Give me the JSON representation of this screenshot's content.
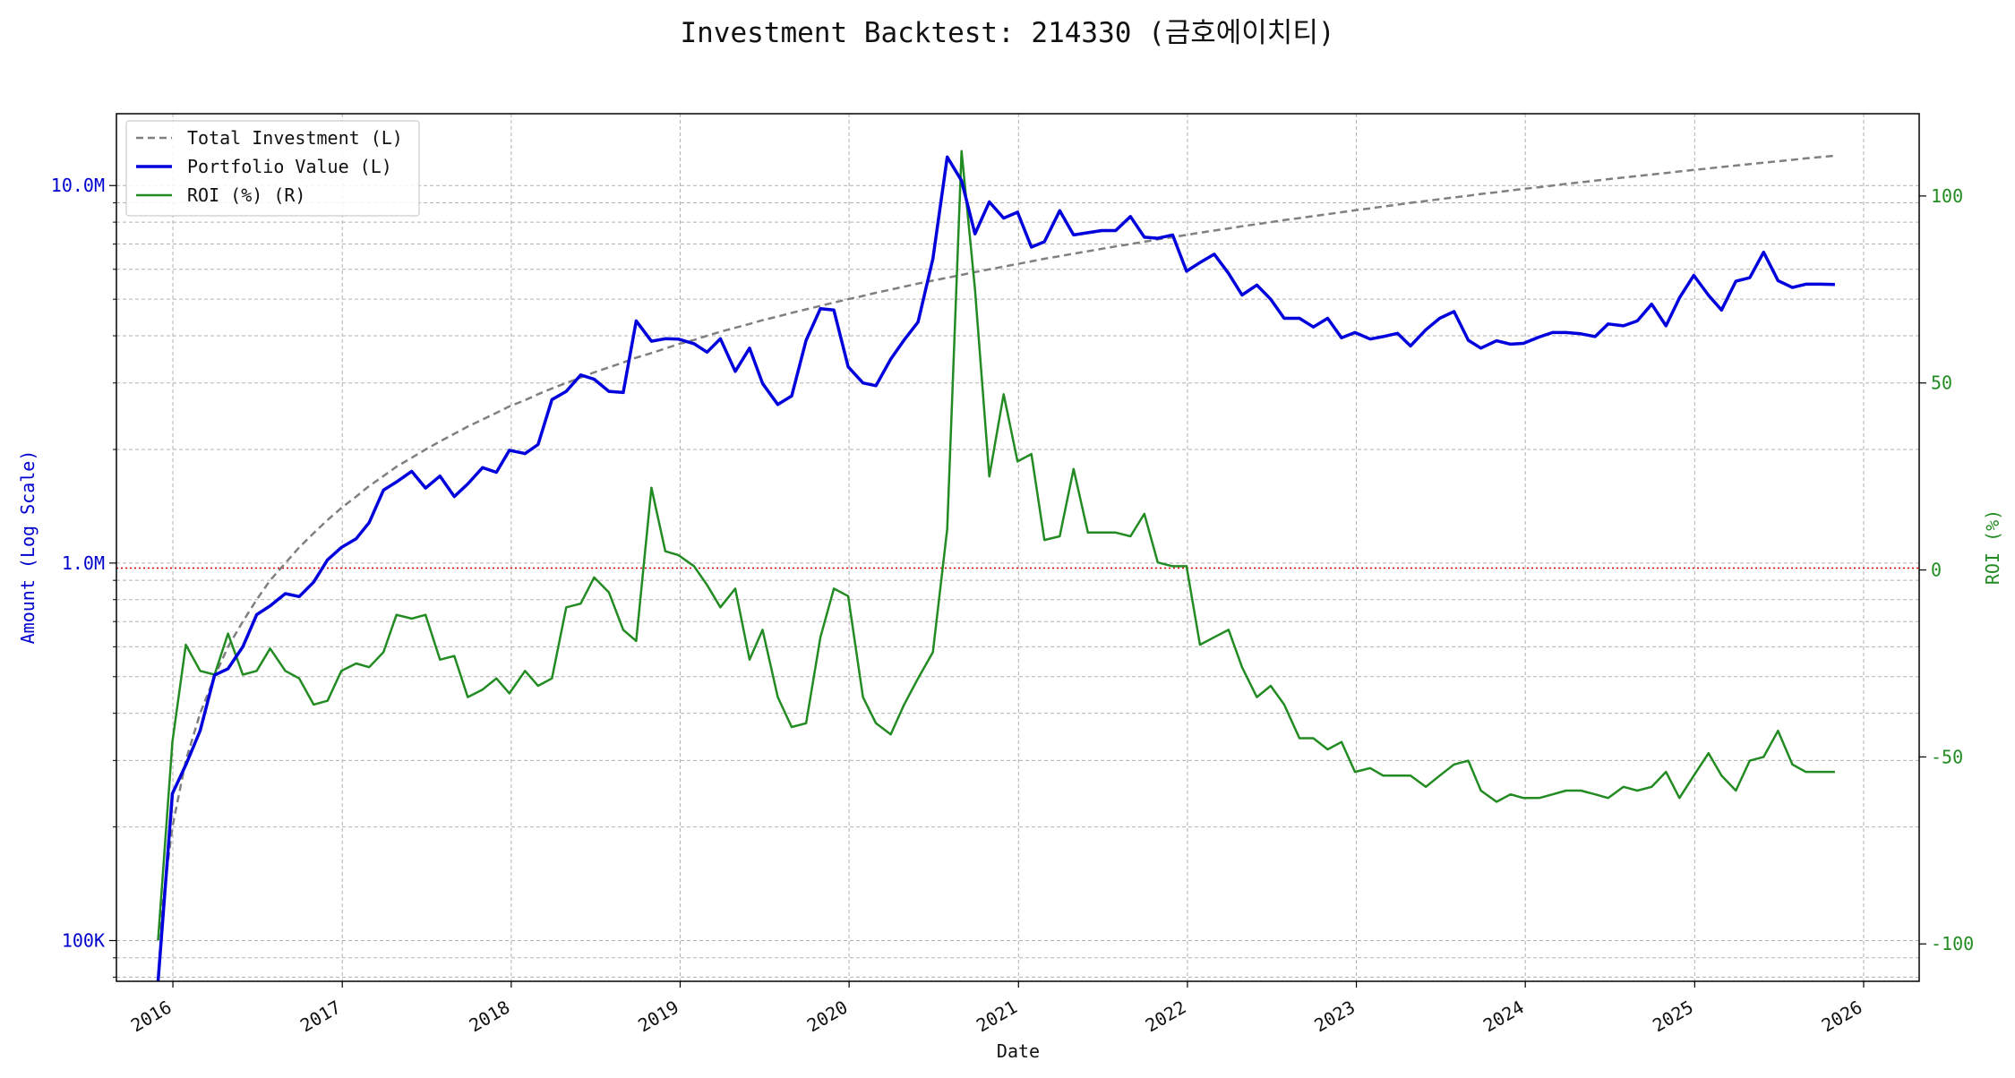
{
  "chart_data": {
    "type": "line",
    "title": "Investment Backtest: 214330 (금호에이치티)",
    "xlabel": "Date",
    "ylabel_left": "Amount (Log Scale)",
    "ylabel_right": "ROI (%)",
    "left_scale": "log",
    "grid": true,
    "legend_position": "top-left",
    "x_range": [
      "2015-09-01",
      "2026-05-01"
    ],
    "left_ylim": [
      78000,
      15500000
    ],
    "right_ylim": [
      -110,
      122
    ],
    "x_ticks": [
      {
        "date": "2016-01-01",
        "label": "2016"
      },
      {
        "date": "2017-01-01",
        "label": "2017"
      },
      {
        "date": "2018-01-01",
        "label": "2018"
      },
      {
        "date": "2019-01-01",
        "label": "2019"
      },
      {
        "date": "2020-01-01",
        "label": "2020"
      },
      {
        "date": "2021-01-01",
        "label": "2021"
      },
      {
        "date": "2022-01-01",
        "label": "2022"
      },
      {
        "date": "2023-01-01",
        "label": "2023"
      },
      {
        "date": "2024-01-01",
        "label": "2024"
      },
      {
        "date": "2025-01-01",
        "label": "2025"
      },
      {
        "date": "2026-01-01",
        "label": "2026"
      }
    ],
    "left_ticks": [
      {
        "value": 100000,
        "label": "100K"
      },
      {
        "value": 1000000,
        "label": "1.0M"
      },
      {
        "value": 10000000,
        "label": "10.0M"
      }
    ],
    "right_ticks": [
      {
        "value": -100,
        "label": "-100"
      },
      {
        "value": -50,
        "label": "-50"
      },
      {
        "value": 0,
        "label": "0"
      },
      {
        "value": 50,
        "label": "50"
      },
      {
        "value": 100,
        "label": "100"
      }
    ],
    "reference_line": {
      "axis": "left",
      "value": 970000,
      "color": "#dd0000",
      "style": "dotted"
    },
    "dates": [
      "2015-11-30",
      "2015-12-31",
      "2016-01-29",
      "2016-02-29",
      "2016-03-31",
      "2016-04-29",
      "2016-05-31",
      "2016-06-30",
      "2016-07-29",
      "2016-08-31",
      "2016-09-30",
      "2016-10-31",
      "2016-11-30",
      "2016-12-30",
      "2017-01-31",
      "2017-02-28",
      "2017-03-31",
      "2017-04-28",
      "2017-05-31",
      "2017-06-30",
      "2017-07-31",
      "2017-08-31",
      "2017-09-29",
      "2017-10-31",
      "2017-11-30",
      "2017-12-28",
      "2018-01-31",
      "2018-02-28",
      "2018-03-30",
      "2018-04-30",
      "2018-05-31",
      "2018-06-29",
      "2018-07-31",
      "2018-08-31",
      "2018-09-28",
      "2018-10-31",
      "2018-11-30",
      "2018-12-28",
      "2019-01-31",
      "2019-02-28",
      "2019-03-29",
      "2019-04-30",
      "2019-05-31",
      "2019-06-28",
      "2019-07-31",
      "2019-08-30",
      "2019-09-30",
      "2019-10-31",
      "2019-11-29",
      "2019-12-30",
      "2020-01-31",
      "2020-02-28",
      "2020-03-31",
      "2020-04-29",
      "2020-05-29",
      "2020-06-30",
      "2020-07-31",
      "2020-08-31",
      "2020-09-29",
      "2020-10-30",
      "2020-11-30",
      "2020-12-30",
      "2021-01-29",
      "2021-02-26",
      "2021-03-31",
      "2021-04-30",
      "2021-05-31",
      "2021-06-30",
      "2021-07-30",
      "2021-08-31",
      "2021-09-30",
      "2021-10-29",
      "2021-11-30",
      "2021-12-30",
      "2022-01-28",
      "2022-02-28",
      "2022-03-31",
      "2022-04-29",
      "2022-05-31",
      "2022-06-30",
      "2022-07-29",
      "2022-08-31",
      "2022-09-30",
      "2022-10-31",
      "2022-11-30",
      "2022-12-29",
      "2023-01-31",
      "2023-02-28",
      "2023-03-31",
      "2023-04-28",
      "2023-05-31",
      "2023-06-30",
      "2023-07-31",
      "2023-08-31",
      "2023-09-27",
      "2023-10-31",
      "2023-11-30",
      "2023-12-28",
      "2024-01-31",
      "2024-02-29",
      "2024-03-29",
      "2024-04-30",
      "2024-05-31",
      "2024-06-28",
      "2024-07-31",
      "2024-08-30",
      "2024-09-30",
      "2024-10-31",
      "2024-11-29",
      "2024-12-30",
      "2025-01-31",
      "2025-02-28",
      "2025-03-31",
      "2025-04-30",
      "2025-05-30",
      "2025-06-30",
      "2025-07-31",
      "2025-08-29",
      "2025-09-30",
      "2025-10-31"
    ],
    "series": [
      {
        "name": "Total Investment (L)",
        "axis": "left",
        "color": "#808080",
        "style": "dashed",
        "values": [
          100000,
          200000,
          300000,
          400000,
          500000,
          600000,
          700000,
          800000,
          900000,
          1000000,
          1100000,
          1200000,
          1300000,
          1400000,
          1500000,
          1600000,
          1700000,
          1800000,
          1900000,
          2000000,
          2100000,
          2200000,
          2300000,
          2400000,
          2500000,
          2600000,
          2700000,
          2800000,
          2900000,
          3000000,
          3100000,
          3200000,
          3300000,
          3400000,
          3500000,
          3600000,
          3700000,
          3800000,
          3900000,
          4000000,
          4100000,
          4200000,
          4300000,
          4400000,
          4500000,
          4600000,
          4700000,
          4800000,
          4900000,
          5000000,
          5100000,
          5200000,
          5300000,
          5400000,
          5500000,
          5600000,
          5700000,
          5800000,
          5900000,
          6000000,
          6100000,
          6200000,
          6300000,
          6400000,
          6500000,
          6600000,
          6700000,
          6800000,
          6900000,
          7000000,
          7100000,
          7200000,
          7300000,
          7400000,
          7500000,
          7600000,
          7700000,
          7800000,
          7900000,
          8000000,
          8100000,
          8200000,
          8300000,
          8400000,
          8500000,
          8600000,
          8700000,
          8800000,
          8900000,
          9000000,
          9100000,
          9200000,
          9300000,
          9400000,
          9500000,
          9600000,
          9700000,
          9800000,
          9900000,
          10000000,
          10100000,
          10200000,
          10300000,
          10400000,
          10500000,
          10600000,
          10700000,
          10800000,
          10900000,
          11000000,
          11100000,
          11200000,
          11300000,
          11400000,
          11500000,
          11600000,
          11700000,
          11800000,
          11900000,
          12000000
        ]
      },
      {
        "name": "Portfolio Value (L)",
        "axis": "left",
        "color": "#0000dd",
        "style": "solid",
        "values": [
          52000,
          245000,
          292000,
          360000,
          505000,
          525000,
          600000,
          730000,
          770000,
          830000,
          815000,
          890000,
          1020000,
          1100000,
          1160000,
          1280000,
          1560000,
          1640000,
          1750000,
          1580000,
          1700000,
          1500000,
          1620000,
          1790000,
          1740000,
          1990000,
          1950000,
          2060000,
          2710000,
          2850000,
          3150000,
          3070000,
          2850000,
          2830000,
          4380000,
          3870000,
          3930000,
          3920000,
          3810000,
          3620000,
          3930000,
          3220000,
          3710000,
          2990000,
          2630000,
          2770000,
          3890000,
          4720000,
          4680000,
          3310000,
          3000000,
          2950000,
          3470000,
          3900000,
          4350000,
          6400000,
          11900000,
          10300000,
          7450000,
          9050000,
          8200000,
          8500000,
          6870000,
          7100000,
          8580000,
          7400000,
          7500000,
          7600000,
          7600000,
          8280000,
          7300000,
          7250000,
          7400000,
          5930000,
          6250000,
          6580000,
          5850000,
          5130000,
          5450000,
          5000000,
          4450000,
          4450000,
          4220000,
          4450000,
          3950000,
          4080000,
          3920000,
          3980000,
          4060000,
          3760000,
          4150000,
          4450000,
          4640000,
          3890000,
          3710000,
          3880000,
          3800000,
          3820000,
          3970000,
          4080000,
          4080000,
          4050000,
          3980000,
          4300000,
          4250000,
          4380000,
          4850000,
          4250000,
          5040000,
          5780000,
          5120000,
          4680000,
          5580000,
          5700000,
          6660000,
          5600000,
          5370000,
          5480000,
          5480000,
          5470000
        ]
      },
      {
        "name": "ROI (%) (R)",
        "axis": "right",
        "color": "#228b22",
        "style": "solid",
        "values": [
          -99,
          -46,
          -20,
          -27,
          -28,
          -17,
          -28,
          -27,
          -21,
          -27,
          -29,
          -36,
          -35,
          -27,
          -25,
          -26,
          -22,
          -12,
          -13,
          -12,
          -24,
          -23,
          -34,
          -32,
          -29,
          -33,
          -27,
          -31,
          -29,
          -10,
          -9,
          -2,
          -6,
          -16,
          -19,
          22,
          5,
          4,
          1,
          -4,
          -10,
          -5,
          -24,
          -16,
          -34,
          -42,
          -41,
          -18,
          -5,
          -7,
          -34,
          -41,
          -44,
          -36,
          -29,
          -22,
          11,
          112,
          75,
          25,
          47,
          29,
          31,
          8,
          9,
          27,
          10,
          10,
          10,
          9,
          15,
          2,
          1,
          1,
          -20,
          -18,
          -16,
          -26,
          -34,
          -31,
          -36,
          -45,
          -45,
          -48,
          -46,
          -54,
          -53,
          -55,
          -55,
          -55,
          -58,
          -55,
          -52,
          -51,
          -59,
          -62,
          -60,
          -61,
          -61,
          -60,
          -59,
          -59,
          -60,
          -61,
          -58,
          -59,
          -58,
          -54,
          -61,
          -55,
          -49,
          -55,
          -59,
          -51,
          -50,
          -43,
          -52,
          -54,
          -54,
          -54
        ]
      }
    ]
  }
}
